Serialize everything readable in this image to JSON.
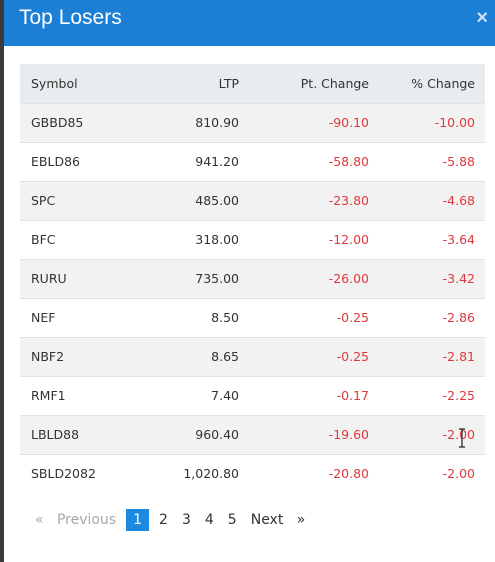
{
  "modal": {
    "title": "Top Losers",
    "close_label": "×"
  },
  "table": {
    "headers": [
      "Symbol",
      "LTP",
      "Pt. Change",
      "% Change"
    ],
    "rows": [
      {
        "symbol": "GBBD85",
        "ltp": "810.90",
        "pt": "-90.10",
        "pct": "-10.00"
      },
      {
        "symbol": "EBLD86",
        "ltp": "941.20",
        "pt": "-58.80",
        "pct": "-5.88"
      },
      {
        "symbol": "SPC",
        "ltp": "485.00",
        "pt": "-23.80",
        "pct": "-4.68"
      },
      {
        "symbol": "BFC",
        "ltp": "318.00",
        "pt": "-12.00",
        "pct": "-3.64"
      },
      {
        "symbol": "RURU",
        "ltp": "735.00",
        "pt": "-26.00",
        "pct": "-3.42"
      },
      {
        "symbol": "NEF",
        "ltp": "8.50",
        "pt": "-0.25",
        "pct": "-2.86"
      },
      {
        "symbol": "NBF2",
        "ltp": "8.65",
        "pt": "-0.25",
        "pct": "-2.81"
      },
      {
        "symbol": "RMF1",
        "ltp": "7.40",
        "pt": "-0.17",
        "pct": "-2.25"
      },
      {
        "symbol": "LBLD88",
        "ltp": "960.40",
        "pt": "-19.60",
        "pct": "-2.00"
      },
      {
        "symbol": "SBLD2082",
        "ltp": "1,020.80",
        "pt": "-20.80",
        "pct": "-2.00"
      }
    ]
  },
  "pagination": {
    "prev_arrow": "«",
    "previous": "Previous",
    "pages": [
      "1",
      "2",
      "3",
      "4",
      "5"
    ],
    "active_page": "1",
    "next": "Next",
    "next_arrow": "»"
  },
  "colors": {
    "header_bg": "#1b7fd6",
    "negative": "#e0393b",
    "active_page": "#1b8ae0"
  }
}
